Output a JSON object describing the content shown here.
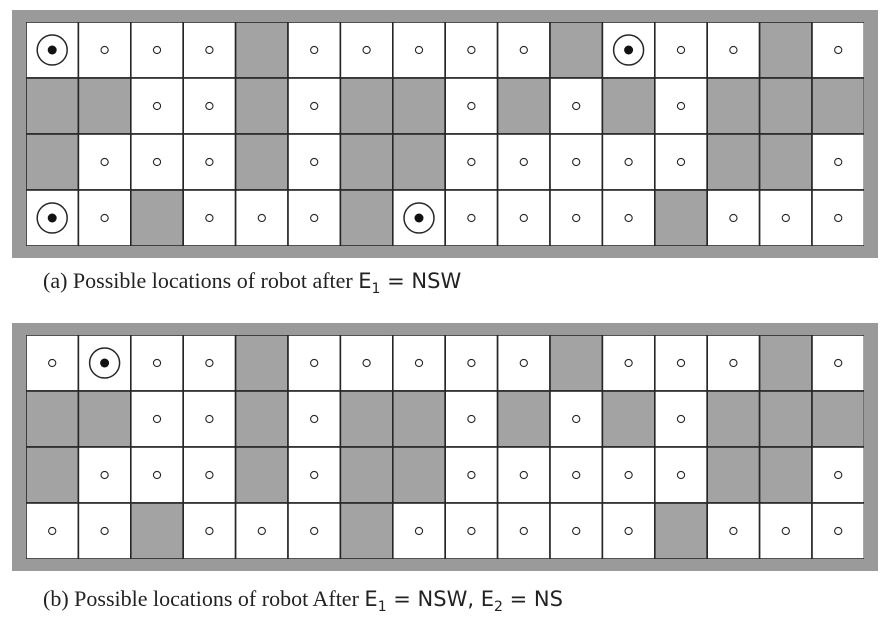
{
  "colors": {
    "wall": "#a3a3a3",
    "free": "#ffffff",
    "grid": "#262626",
    "frame": "#9a9a9a"
  },
  "grid_map": [
    "....#.....#...#.",
    "##..#.##.#.#.###",
    "#...#.##.....##.",
    "..#...#.....#..."
  ],
  "panel_a": {
    "robot_locations": [
      [
        0,
        0
      ],
      [
        0,
        11
      ],
      [
        3,
        0
      ],
      [
        3,
        7
      ]
    ],
    "caption": {
      "prefix": "(a) Possible locations of robot after ",
      "e1_symbol": "E",
      "e1_index": "1",
      "e1_value": " = NSW"
    }
  },
  "panel_b": {
    "robot_locations": [
      [
        0,
        1
      ]
    ],
    "caption": {
      "prefix": "(b) Possible locations of robot After ",
      "e1_symbol": "E",
      "e1_index": "1",
      "e1_value": " = NSW, ",
      "e2_symbol": "E",
      "e2_index": "2",
      "e2_value": " = NS"
    }
  }
}
